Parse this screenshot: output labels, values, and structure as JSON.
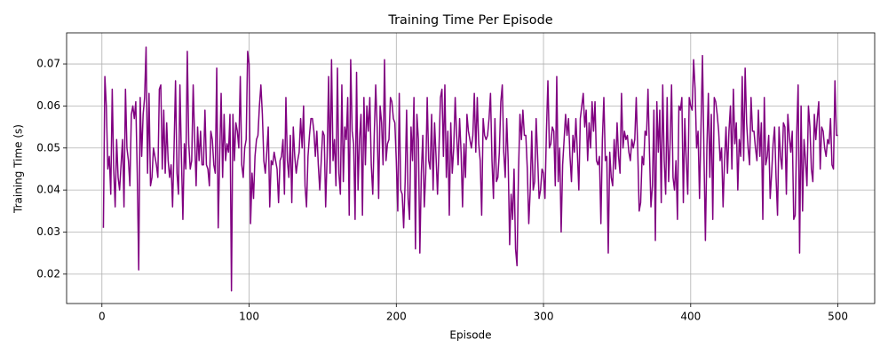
{
  "chart_data": {
    "type": "line",
    "title": "Training Time Per Episode",
    "x_label": "Episode",
    "y_label": "Training Time (s)",
    "color": "#800080",
    "grid": true,
    "xlim": [
      -24,
      525
    ],
    "ylim": [
      0.013,
      0.0774
    ],
    "xticks": [
      0,
      100,
      200,
      300,
      400,
      500
    ],
    "yticks": [
      0.02,
      0.03,
      0.04,
      0.05,
      0.06,
      0.07
    ],
    "x": [
      1,
      2,
      3,
      4,
      5,
      6,
      7,
      8,
      9,
      10,
      11,
      12,
      13,
      14,
      15,
      16,
      17,
      18,
      19,
      20,
      21,
      22,
      23,
      24,
      25,
      26,
      27,
      28,
      29,
      30,
      31,
      32,
      33,
      34,
      35,
      36,
      37,
      38,
      39,
      40,
      41,
      42,
      43,
      44,
      45,
      46,
      47,
      48,
      49,
      50,
      51,
      52,
      53,
      54,
      55,
      56,
      57,
      58,
      59,
      60,
      61,
      62,
      63,
      64,
      65,
      66,
      67,
      68,
      69,
      70,
      71,
      72,
      73,
      74,
      75,
      76,
      77,
      78,
      79,
      80,
      81,
      82,
      83,
      84,
      85,
      86,
      87,
      88,
      89,
      90,
      91,
      92,
      93,
      94,
      95,
      96,
      97,
      98,
      99,
      100,
      101,
      102,
      103,
      104,
      105,
      106,
      107,
      108,
      109,
      110,
      111,
      112,
      113,
      114,
      115,
      116,
      117,
      118,
      119,
      120,
      121,
      122,
      123,
      124,
      125,
      126,
      127,
      128,
      129,
      130,
      131,
      132,
      133,
      134,
      135,
      136,
      137,
      138,
      139,
      140,
      141,
      142,
      143,
      144,
      145,
      146,
      147,
      148,
      149,
      150,
      151,
      152,
      153,
      154,
      155,
      156,
      157,
      158,
      159,
      160,
      161,
      162,
      163,
      164,
      165,
      166,
      167,
      168,
      169,
      170,
      171,
      172,
      173,
      174,
      175,
      176,
      177,
      178,
      179,
      180,
      181,
      182,
      183,
      184,
      185,
      186,
      187,
      188,
      189,
      190,
      191,
      192,
      193,
      194,
      195,
      196,
      197,
      198,
      199,
      200,
      201,
      202,
      203,
      204,
      205,
      206,
      207,
      208,
      209,
      210,
      211,
      212,
      213,
      214,
      215,
      216,
      217,
      218,
      219,
      220,
      221,
      222,
      223,
      224,
      225,
      226,
      227,
      228,
      229,
      230,
      231,
      232,
      233,
      234,
      235,
      236,
      237,
      238,
      239,
      240,
      241,
      242,
      243,
      244,
      245,
      246,
      247,
      248,
      249,
      250,
      251,
      252,
      253,
      254,
      255,
      256,
      257,
      258,
      259,
      260,
      261,
      262,
      263,
      264,
      265,
      266,
      267,
      268,
      269,
      270,
      271,
      272,
      273,
      274,
      275,
      276,
      277,
      278,
      279,
      280,
      281,
      282,
      283,
      284,
      285,
      286,
      287,
      288,
      289,
      290,
      291,
      292,
      293,
      294,
      295,
      296,
      297,
      298,
      299,
      300,
      301,
      302,
      303,
      304,
      305,
      306,
      307,
      308,
      309,
      310,
      311,
      312,
      313,
      314,
      315,
      316,
      317,
      318,
      319,
      320,
      321,
      322,
      323,
      324,
      325,
      326,
      327,
      328,
      329,
      330,
      331,
      332,
      333,
      334,
      335,
      336,
      337,
      338,
      339,
      340,
      341,
      342,
      343,
      344,
      345,
      346,
      347,
      348,
      349,
      350,
      351,
      352,
      353,
      354,
      355,
      356,
      357,
      358,
      359,
      360,
      361,
      362,
      363,
      364,
      365,
      366,
      367,
      368,
      369,
      370,
      371,
      372,
      373,
      374,
      375,
      376,
      377,
      378,
      379,
      380,
      381,
      382,
      383,
      384,
      385,
      386,
      387,
      388,
      389,
      390,
      391,
      392,
      393,
      394,
      395,
      396,
      397,
      398,
      399,
      400,
      401,
      402,
      403,
      404,
      405,
      406,
      407,
      408,
      409,
      410,
      411,
      412,
      413,
      414,
      415,
      416,
      417,
      418,
      419,
      420,
      421,
      422,
      423,
      424,
      425,
      426,
      427,
      428,
      429,
      430,
      431,
      432,
      433,
      434,
      435,
      436,
      437,
      438,
      439,
      440,
      441,
      442,
      443,
      444,
      445,
      446,
      447,
      448,
      449,
      450,
      451,
      452,
      453,
      454,
      455,
      456,
      457,
      458,
      459,
      460,
      461,
      462,
      463,
      464,
      465,
      466,
      467,
      468,
      469,
      470,
      471,
      472,
      473,
      474,
      475,
      476,
      477,
      478,
      479,
      480,
      481,
      482,
      483,
      484,
      485,
      486,
      487,
      488,
      489,
      490,
      491,
      492,
      493,
      494,
      495,
      496,
      497,
      498,
      499,
      500
    ],
    "values": [
      0.031,
      0.067,
      0.06,
      0.045,
      0.048,
      0.039,
      0.064,
      0.045,
      0.036,
      0.052,
      0.043,
      0.04,
      0.046,
      0.052,
      0.036,
      0.064,
      0.05,
      0.047,
      0.041,
      0.058,
      0.06,
      0.057,
      0.061,
      0.044,
      0.021,
      0.062,
      0.048,
      0.058,
      0.062,
      0.074,
      0.044,
      0.063,
      0.041,
      0.043,
      0.05,
      0.048,
      0.046,
      0.043,
      0.064,
      0.065,
      0.045,
      0.059,
      0.044,
      0.056,
      0.047,
      0.043,
      0.046,
      0.036,
      0.05,
      0.066,
      0.044,
      0.039,
      0.065,
      0.048,
      0.033,
      0.051,
      0.045,
      0.073,
      0.051,
      0.045,
      0.047,
      0.065,
      0.052,
      0.041,
      0.055,
      0.047,
      0.054,
      0.046,
      0.046,
      0.059,
      0.046,
      0.045,
      0.041,
      0.054,
      0.052,
      0.046,
      0.044,
      0.069,
      0.031,
      0.048,
      0.063,
      0.043,
      0.058,
      0.047,
      0.051,
      0.049,
      0.058,
      0.016,
      0.058,
      0.047,
      0.056,
      0.054,
      0.05,
      0.067,
      0.046,
      0.043,
      0.05,
      0.052,
      0.073,
      0.07,
      0.032,
      0.044,
      0.038,
      0.048,
      0.052,
      0.053,
      0.06,
      0.065,
      0.058,
      0.047,
      0.044,
      0.049,
      0.055,
      0.036,
      0.047,
      0.046,
      0.049,
      0.047,
      0.045,
      0.037,
      0.047,
      0.048,
      0.052,
      0.039,
      0.062,
      0.047,
      0.043,
      0.053,
      0.037,
      0.055,
      0.048,
      0.044,
      0.047,
      0.049,
      0.057,
      0.05,
      0.06,
      0.041,
      0.036,
      0.048,
      0.053,
      0.057,
      0.057,
      0.054,
      0.048,
      0.054,
      0.046,
      0.04,
      0.047,
      0.054,
      0.053,
      0.036,
      0.048,
      0.067,
      0.044,
      0.071,
      0.047,
      0.052,
      0.041,
      0.069,
      0.044,
      0.039,
      0.065,
      0.042,
      0.055,
      0.052,
      0.062,
      0.034,
      0.071,
      0.054,
      0.051,
      0.033,
      0.068,
      0.04,
      0.052,
      0.058,
      0.034,
      0.062,
      0.046,
      0.06,
      0.054,
      0.062,
      0.046,
      0.039,
      0.053,
      0.065,
      0.055,
      0.038,
      0.06,
      0.056,
      0.046,
      0.071,
      0.047,
      0.051,
      0.052,
      0.062,
      0.061,
      0.057,
      0.056,
      0.047,
      0.035,
      0.063,
      0.04,
      0.039,
      0.031,
      0.042,
      0.059,
      0.038,
      0.033,
      0.055,
      0.047,
      0.062,
      0.026,
      0.058,
      0.052,
      0.025,
      0.044,
      0.053,
      0.036,
      0.044,
      0.062,
      0.047,
      0.045,
      0.058,
      0.04,
      0.056,
      0.048,
      0.039,
      0.05,
      0.062,
      0.064,
      0.048,
      0.065,
      0.043,
      0.054,
      0.034,
      0.056,
      0.044,
      0.05,
      0.062,
      0.053,
      0.046,
      0.057,
      0.049,
      0.036,
      0.051,
      0.043,
      0.058,
      0.054,
      0.052,
      0.05,
      0.053,
      0.063,
      0.049,
      0.062,
      0.051,
      0.047,
      0.034,
      0.057,
      0.053,
      0.052,
      0.053,
      0.057,
      0.063,
      0.047,
      0.038,
      0.057,
      0.042,
      0.043,
      0.049,
      0.061,
      0.065,
      0.049,
      0.043,
      0.057,
      0.047,
      0.027,
      0.039,
      0.033,
      0.045,
      0.026,
      0.022,
      0.044,
      0.058,
      0.052,
      0.059,
      0.053,
      0.053,
      0.045,
      0.032,
      0.04,
      0.054,
      0.04,
      0.042,
      0.057,
      0.048,
      0.038,
      0.04,
      0.045,
      0.044,
      0.038,
      0.054,
      0.066,
      0.05,
      0.051,
      0.055,
      0.054,
      0.041,
      0.067,
      0.042,
      0.05,
      0.03,
      0.046,
      0.052,
      0.058,
      0.053,
      0.057,
      0.048,
      0.042,
      0.053,
      0.049,
      0.057,
      0.049,
      0.04,
      0.057,
      0.06,
      0.063,
      0.055,
      0.059,
      0.047,
      0.056,
      0.05,
      0.061,
      0.054,
      0.061,
      0.047,
      0.046,
      0.048,
      0.032,
      0.052,
      0.062,
      0.047,
      0.048,
      0.025,
      0.049,
      0.043,
      0.041,
      0.052,
      0.045,
      0.056,
      0.048,
      0.044,
      0.063,
      0.05,
      0.054,
      0.052,
      0.053,
      0.049,
      0.047,
      0.052,
      0.05,
      0.052,
      0.062,
      0.05,
      0.035,
      0.037,
      0.048,
      0.046,
      0.054,
      0.053,
      0.064,
      0.049,
      0.036,
      0.041,
      0.059,
      0.028,
      0.061,
      0.049,
      0.059,
      0.037,
      0.065,
      0.047,
      0.039,
      0.062,
      0.042,
      0.051,
      0.065,
      0.043,
      0.04,
      0.047,
      0.033,
      0.06,
      0.059,
      0.062,
      0.037,
      0.057,
      0.047,
      0.039,
      0.062,
      0.06,
      0.059,
      0.071,
      0.064,
      0.05,
      0.054,
      0.038,
      0.055,
      0.072,
      0.049,
      0.028,
      0.05,
      0.063,
      0.043,
      0.058,
      0.033,
      0.062,
      0.061,
      0.058,
      0.054,
      0.047,
      0.05,
      0.036,
      0.047,
      0.055,
      0.044,
      0.054,
      0.06,
      0.045,
      0.064,
      0.051,
      0.056,
      0.04,
      0.052,
      0.048,
      0.067,
      0.047,
      0.069,
      0.056,
      0.05,
      0.046,
      0.062,
      0.054,
      0.054,
      0.05,
      0.047,
      0.059,
      0.048,
      0.056,
      0.033,
      0.062,
      0.046,
      0.048,
      0.053,
      0.038,
      0.044,
      0.051,
      0.055,
      0.043,
      0.034,
      0.055,
      0.048,
      0.045,
      0.056,
      0.055,
      0.039,
      0.058,
      0.053,
      0.049,
      0.054,
      0.033,
      0.034,
      0.053,
      0.065,
      0.025,
      0.06,
      0.035,
      0.052,
      0.047,
      0.041,
      0.06,
      0.055,
      0.045,
      0.042,
      0.058,
      0.052,
      0.057,
      0.061,
      0.045,
      0.055,
      0.054,
      0.05,
      0.048,
      0.052,
      0.051,
      0.057,
      0.046,
      0.045,
      0.066,
      0.053,
      0.053
    ]
  }
}
